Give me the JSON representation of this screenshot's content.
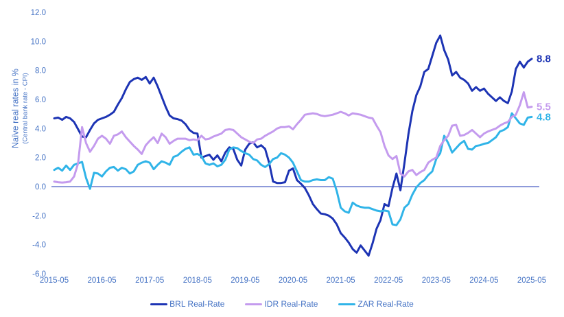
{
  "y_axis": {
    "title": "Naïve real rates in %",
    "subtitle": "(Central bank rate - CPI)"
  },
  "colors": {
    "axis_text": "#4472c4",
    "zero_line": "#1d34b4",
    "background": "#ffffff"
  },
  "chart_data": {
    "type": "line",
    "title": "",
    "xlabel": "",
    "ylabel": "Naïve real rates in % (Central bank rate - CPI)",
    "grid": false,
    "legend_position": "bottom",
    "ylim": [
      -6.0,
      12.0
    ],
    "y_tick_labels": [
      "12.0",
      "10.0",
      "8.0",
      "6.0",
      "4.0",
      "2.0",
      "0.0",
      "-2.0",
      "-4.0",
      "-6.0"
    ],
    "x_tick_labels": [
      "2015-05",
      "2016-05",
      "2017-05",
      "2018-05",
      "2019-05",
      "2020-05",
      "2021-05",
      "2022-05",
      "2023-05",
      "2024-05",
      "2025-05"
    ],
    "x_start": "2015-05",
    "x_interval": "monthly",
    "series": [
      {
        "name": "BRL Real-Rate",
        "color": "#1d34b4",
        "end_label": "8.8",
        "values": [
          4.7,
          4.75,
          4.6,
          4.8,
          4.7,
          4.45,
          3.95,
          3.45,
          3.4,
          3.9,
          4.35,
          4.6,
          4.7,
          4.8,
          4.95,
          5.15,
          5.65,
          6.1,
          6.7,
          7.2,
          7.4,
          7.5,
          7.35,
          7.55,
          7.1,
          7.5,
          6.9,
          6.2,
          5.5,
          4.9,
          4.7,
          4.65,
          4.55,
          4.3,
          3.9,
          3.7,
          3.65,
          2.0,
          2.1,
          2.2,
          1.85,
          2.15,
          1.75,
          2.35,
          2.7,
          2.6,
          1.85,
          1.45,
          2.55,
          2.95,
          3.05,
          2.7,
          2.85,
          2.6,
          1.65,
          0.35,
          0.25,
          0.25,
          0.3,
          1.1,
          1.25,
          0.45,
          0.2,
          -0.1,
          -0.6,
          -1.2,
          -1.55,
          -1.85,
          -1.9,
          -2.0,
          -2.2,
          -2.6,
          -3.2,
          -3.5,
          -3.85,
          -4.3,
          -4.55,
          -4.05,
          -4.4,
          -4.75,
          -3.9,
          -2.9,
          -2.3,
          -1.2,
          -1.35,
          -0.1,
          0.9,
          -0.25,
          1.6,
          3.6,
          5.2,
          6.3,
          6.9,
          7.9,
          8.1,
          9.0,
          9.9,
          10.4,
          9.4,
          8.75,
          7.65,
          7.9,
          7.5,
          7.35,
          7.1,
          6.6,
          6.85,
          6.6,
          6.75,
          6.4,
          6.15,
          5.9,
          6.15,
          5.9,
          5.75,
          6.55,
          8.1,
          8.6,
          8.2,
          8.6,
          8.8
        ]
      },
      {
        "name": "IDR Real-Rate",
        "color": "#c49bee",
        "end_label": "5.5",
        "values": [
          0.35,
          0.3,
          0.28,
          0.3,
          0.35,
          0.7,
          1.6,
          4.1,
          3.0,
          2.4,
          2.8,
          3.3,
          3.5,
          3.3,
          2.95,
          3.5,
          3.6,
          3.8,
          3.4,
          3.1,
          2.8,
          2.55,
          2.25,
          2.85,
          3.15,
          3.4,
          3.0,
          3.65,
          3.4,
          2.95,
          3.15,
          3.3,
          3.3,
          3.3,
          3.2,
          3.25,
          3.2,
          3.5,
          3.25,
          3.3,
          3.45,
          3.55,
          3.65,
          3.9,
          3.95,
          3.9,
          3.65,
          3.4,
          3.25,
          3.1,
          3.0,
          3.25,
          3.3,
          3.5,
          3.65,
          3.8,
          4.0,
          4.1,
          4.1,
          4.15,
          3.95,
          4.3,
          4.6,
          4.95,
          5.0,
          5.05,
          5.0,
          4.9,
          4.85,
          4.9,
          4.95,
          5.05,
          5.15,
          5.05,
          4.9,
          5.05,
          5.0,
          4.95,
          4.85,
          4.75,
          4.7,
          4.2,
          3.75,
          2.8,
          2.15,
          1.9,
          2.1,
          0.9,
          0.7,
          1.05,
          1.15,
          0.8,
          1.0,
          1.15,
          1.65,
          1.85,
          2.0,
          2.8,
          3.2,
          3.5,
          4.2,
          4.25,
          3.5,
          3.55,
          3.7,
          3.9,
          3.65,
          3.4,
          3.65,
          3.8,
          3.9,
          4.0,
          4.2,
          4.35,
          4.45,
          4.8,
          4.95,
          5.6,
          6.5,
          5.45,
          5.5
        ]
      },
      {
        "name": "ZAR Real-Rate",
        "color": "#30b4e8",
        "end_label": "4.8",
        "values": [
          1.15,
          1.3,
          1.1,
          1.45,
          1.15,
          1.5,
          1.6,
          1.7,
          0.6,
          -0.15,
          0.95,
          0.9,
          0.7,
          1.05,
          1.3,
          1.35,
          1.1,
          1.3,
          1.2,
          0.9,
          1.05,
          1.5,
          1.65,
          1.75,
          1.65,
          1.2,
          1.5,
          1.75,
          1.65,
          1.5,
          2.05,
          2.15,
          2.4,
          2.6,
          2.7,
          2.2,
          2.25,
          2.1,
          1.6,
          1.5,
          1.6,
          1.4,
          1.5,
          1.85,
          2.55,
          2.7,
          2.65,
          2.45,
          2.3,
          2.2,
          1.9,
          1.8,
          1.5,
          1.35,
          1.55,
          1.9,
          2.0,
          2.3,
          2.2,
          2.0,
          1.65,
          1.05,
          0.45,
          0.35,
          0.35,
          0.45,
          0.5,
          0.45,
          0.45,
          0.65,
          0.55,
          -0.3,
          -1.45,
          -1.7,
          -1.8,
          -1.1,
          -1.3,
          -1.4,
          -1.45,
          -1.45,
          -1.55,
          -1.65,
          -1.7,
          -1.65,
          -1.7,
          -2.6,
          -2.65,
          -2.25,
          -1.45,
          -1.2,
          -0.55,
          -0.05,
          0.25,
          0.45,
          0.8,
          1.05,
          1.9,
          2.3,
          3.5,
          3.0,
          2.35,
          2.65,
          2.95,
          3.15,
          2.6,
          2.55,
          2.8,
          2.85,
          2.95,
          3.0,
          3.2,
          3.4,
          3.8,
          3.9,
          4.1,
          5.05,
          4.7,
          4.35,
          4.25,
          4.75,
          4.8
        ]
      }
    ]
  }
}
